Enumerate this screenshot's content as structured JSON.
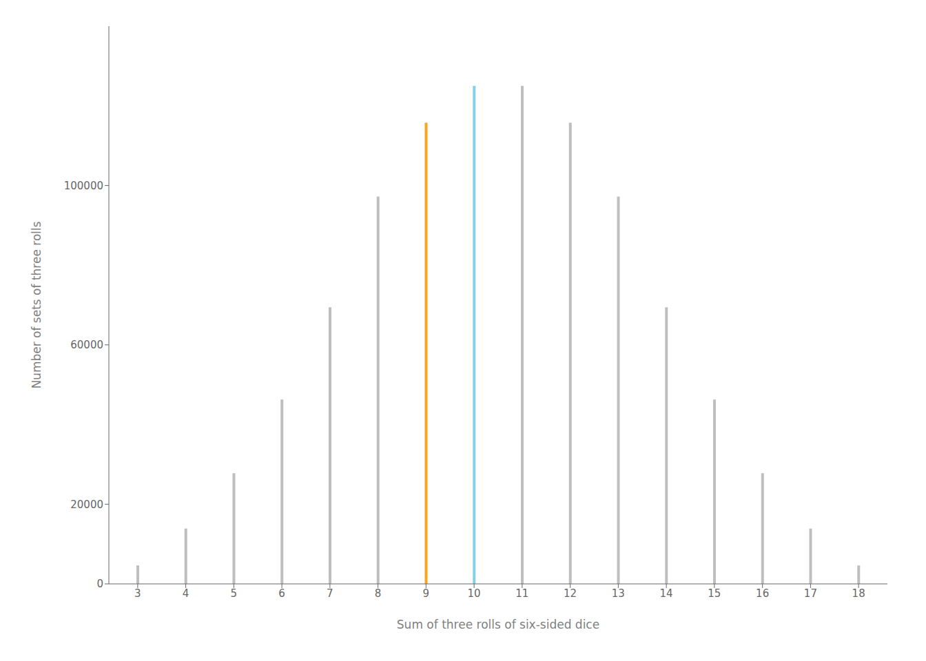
{
  "chart_data": {
    "type": "bar",
    "x": [
      3,
      4,
      5,
      6,
      7,
      8,
      9,
      10,
      11,
      12,
      13,
      14,
      15,
      16,
      17,
      18
    ],
    "values": [
      4630,
      13889,
      27778,
      46296,
      69444,
      97222,
      115741,
      125000,
      125000,
      115741,
      97222,
      69444,
      46296,
      27778,
      13889,
      4630
    ],
    "colors": [
      "#bebebe",
      "#bebebe",
      "#bebebe",
      "#bebebe",
      "#bebebe",
      "#bebebe",
      "#f5a623",
      "#87ceeb",
      "#bebebe",
      "#bebebe",
      "#bebebe",
      "#bebebe",
      "#bebebe",
      "#bebebe",
      "#bebebe",
      "#bebebe"
    ],
    "xlabel": "Sum of three rolls of six-sided dice",
    "ylabel": "Number of sets of three rolls",
    "xlim": [
      2.4,
      18.6
    ],
    "xticks": [
      3,
      4,
      5,
      6,
      7,
      8,
      9,
      10,
      11,
      12,
      13,
      14,
      15,
      16,
      17,
      18
    ],
    "ylim": [
      0,
      140000
    ],
    "yticks": [
      0,
      20000,
      60000,
      100000
    ],
    "grid": false
  }
}
